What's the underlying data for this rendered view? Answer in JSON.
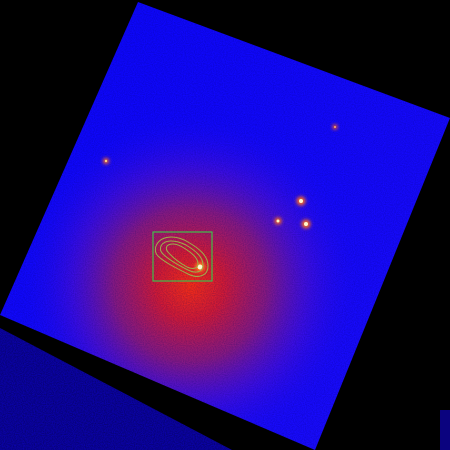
{
  "image": {
    "kind": "false-color X-ray sky image",
    "background_color": "#000000",
    "colormap": {
      "outer": "#1208ff",
      "mid": "#5a10d8",
      "inner": "#d01a30",
      "core": "#ff2a12",
      "point_source": "#fff7cf"
    },
    "overlay": {
      "box_color": "#3fbf4a",
      "contour_color": "#9bb04a",
      "contour_levels": 3
    }
  }
}
